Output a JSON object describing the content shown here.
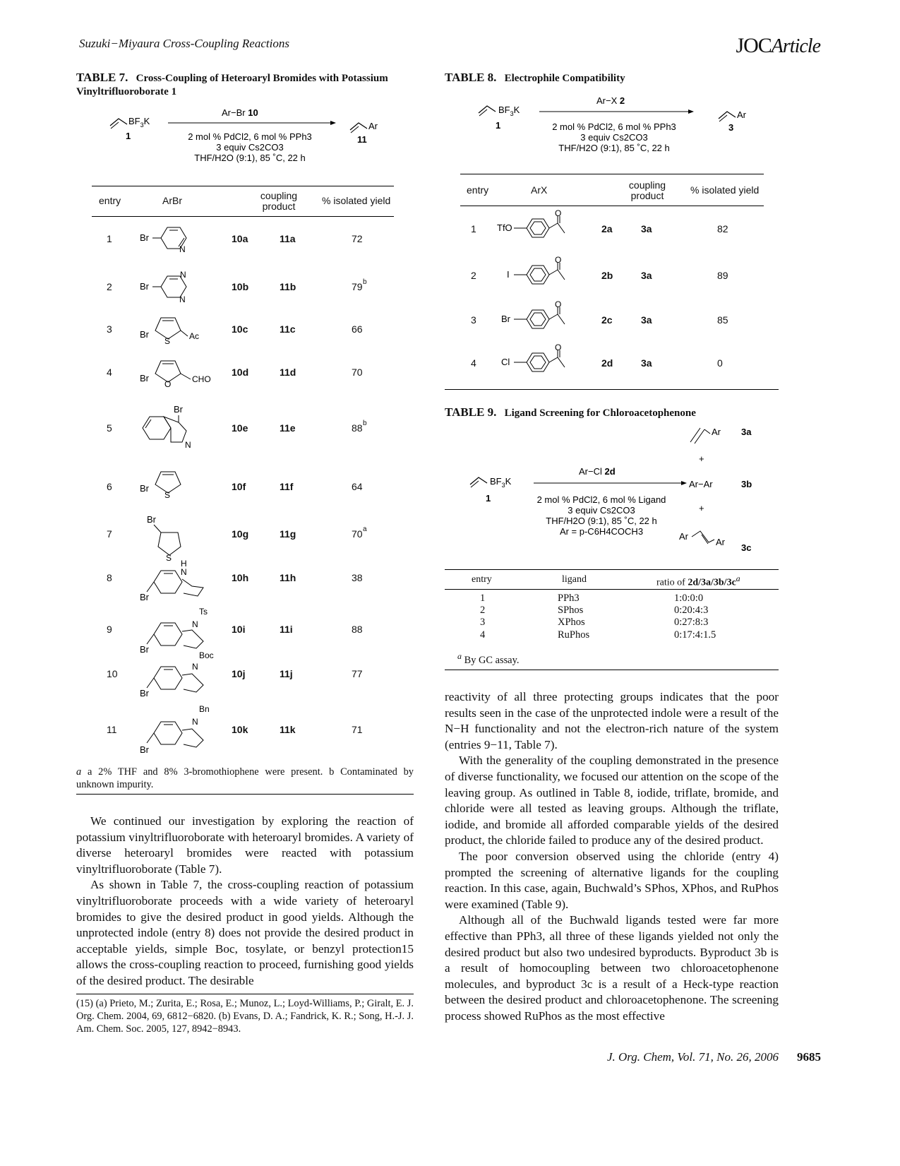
{
  "header": {
    "running_title": "Suzuki−Miyaura Cross-Coupling Reactions",
    "journal_logo": "JOC",
    "journal_logo_suffix": "Article"
  },
  "table7": {
    "label": "TABLE 7.",
    "title": "Cross-Coupling of Heteroaryl Bromides with Potassium Vinyltrifluoroborate 1",
    "scheme": {
      "reagent": "Ar−Br",
      "reagent_no": "10",
      "start_no": "1",
      "product_no": "11",
      "cond1": "2 mol % PdCl2, 6 mol % PPh3",
      "cond2": "3 equiv Cs2CO3",
      "cond3": "THF/H2O (9:1), 85 ˚C, 22 h"
    },
    "columns": [
      "entry",
      "ArBr",
      "coupling product",
      "% isolated yield"
    ],
    "rows": [
      {
        "entry": "1",
        "substrate": "10a",
        "product": "11a",
        "yield": "72",
        "sup": ""
      },
      {
        "entry": "2",
        "substrate": "10b",
        "product": "11b",
        "yield": "79",
        "sup": "b"
      },
      {
        "entry": "3",
        "substrate": "10c",
        "product": "11c",
        "yield": "66",
        "sup": ""
      },
      {
        "entry": "4",
        "substrate": "10d",
        "product": "11d",
        "yield": "70",
        "sup": ""
      },
      {
        "entry": "5",
        "substrate": "10e",
        "product": "11e",
        "yield": "88",
        "sup": "b"
      },
      {
        "entry": "6",
        "substrate": "10f",
        "product": "11f",
        "yield": "64",
        "sup": ""
      },
      {
        "entry": "7",
        "substrate": "10g",
        "product": "11g",
        "yield": "70",
        "sup": "a"
      },
      {
        "entry": "8",
        "substrate": "10h",
        "product": "11h",
        "yield": "38",
        "sup": ""
      },
      {
        "entry": "9",
        "substrate": "10i",
        "product": "11i",
        "yield": "88",
        "sup": ""
      },
      {
        "entry": "10",
        "substrate": "10j",
        "product": "11j",
        "yield": "77",
        "sup": ""
      },
      {
        "entry": "11",
        "substrate": "10k",
        "product": "11k",
        "yield": "71",
        "sup": ""
      }
    ],
    "footnote": "a 2% THF and 8% 3-bromothiophene were present. b Contaminated by unknown impurity.",
    "structure_labels": [
      "Br",
      "N",
      "S",
      "Ac",
      "O",
      "CHO",
      "H",
      "Ts",
      "Boc",
      "Bn"
    ]
  },
  "table8": {
    "label": "TABLE 8.",
    "title": "Electrophile Compatibility",
    "scheme": {
      "reagent": "Ar−X",
      "reagent_no": "2",
      "start_no": "1",
      "product_no": "3",
      "cond1": "2 mol % PdCl2, 6 mol % PPh3",
      "cond2": "3 equiv Cs2CO3",
      "cond3": "THF/H2O (9:1), 85 ˚C, 22 h"
    },
    "columns": [
      "entry",
      "ArX",
      "coupling product",
      "% isolated yield"
    ],
    "rows": [
      {
        "entry": "1",
        "x": "TfO",
        "substrate": "2a",
        "product": "3a",
        "yield": "82"
      },
      {
        "entry": "2",
        "x": "I",
        "substrate": "2b",
        "product": "3a",
        "yield": "89"
      },
      {
        "entry": "3",
        "x": "Br",
        "substrate": "2c",
        "product": "3a",
        "yield": "85"
      },
      {
        "entry": "4",
        "x": "Cl",
        "substrate": "2d",
        "product": "3a",
        "yield": "0"
      }
    ]
  },
  "table9": {
    "label": "TABLE 9.",
    "title": "Ligand Screening for Chloroacetophenone",
    "scheme": {
      "reagent": "Ar−Cl",
      "reagent_no": "2d",
      "start_no": "1",
      "cond1": "2 mol % PdCl2, 6 mol % Ligand",
      "cond2": "3 equiv Cs2CO3",
      "cond3": "THF/H2O (9:1), 85 ˚C, 22 h",
      "cond4": "Ar = p-C6H4COCH3",
      "p1": "3a",
      "p2": "Ar−Ar",
      "p2_no": "3b",
      "p3_no": "3c",
      "plus": "+"
    },
    "columns": [
      "entry",
      "ligand",
      "ratio of 2d/3a/3b/3c"
    ],
    "rows": [
      {
        "entry": "1",
        "ligand": "PPh3",
        "ratio": "1:0:0:0"
      },
      {
        "entry": "2",
        "ligand": "SPhos",
        "ratio": "0:20:4:3"
      },
      {
        "entry": "3",
        "ligand": "XPhos",
        "ratio": "0:27:8:3"
      },
      {
        "entry": "4",
        "ligand": "RuPhos",
        "ratio": "0:17:4:1.5"
      }
    ],
    "footnote": "By GC assay."
  },
  "left_text": [
    "We continued our investigation by exploring the reaction of potassium vinyltrifluoroborate with heteroaryl bromides. A variety of diverse heteroaryl bromides were reacted with potassium vinyltrifluoroborate (Table 7).",
    "As shown in Table 7, the cross-coupling reaction of potassium vinyltrifluoroborate proceeds with a wide variety of heteroaryl bromides to give the desired product in good yields. Although the unprotected indole (entry 8) does not provide the desired product in acceptable yields, simple Boc, tosylate, or benzyl protection15 allows the cross-coupling reaction to proceed, furnishing good yields of the desired product. The desirable"
  ],
  "footnote15": "(15) (a) Prieto, M.; Zurita, E.; Rosa, E.; Munoz, L.; Loyd-Williams, P.; Giralt, E. J. Org. Chem. 2004, 69, 6812−6820. (b) Evans, D. A.; Fandrick, K. R.; Song, H.-J. J. Am. Chem. Soc. 2005, 127, 8942−8943.",
  "right_text": [
    "reactivity of all three protecting groups indicates that the poor results seen in the case of the unprotected indole were a result of the N−H functionality and not the electron-rich nature of the system (entries 9−11, Table 7).",
    "With the generality of the coupling demonstrated in the presence of diverse functionality, we focused our attention on the scope of the leaving group. As outlined in Table 8, iodide, triflate, bromide, and chloride were all tested as leaving groups. Although the triflate, iodide, and bromide all afforded comparable yields of the desired product, the chloride failed to produce any of the desired product.",
    "The poor conversion observed using the chloride (entry 4) prompted the screening of alternative ligands for the coupling reaction. In this case, again, Buchwald’s SPhos, XPhos, and RuPhos were examined (Table 9).",
    "Although all of the Buchwald ligands tested were far more effective than PPh3, all three of these ligands yielded not only the desired product but also two undesired byproducts. Byproduct 3b is a result of homocoupling between two chloroacetophenone molecules, and byproduct 3c is a result of a Heck-type reaction between the desired product and chloroacetophenone. The screening process showed RuPhos as the most effective"
  ],
  "footer": {
    "citation": "J. Org. Chem, Vol. 71, No. 26, 2006",
    "page": "9685"
  }
}
